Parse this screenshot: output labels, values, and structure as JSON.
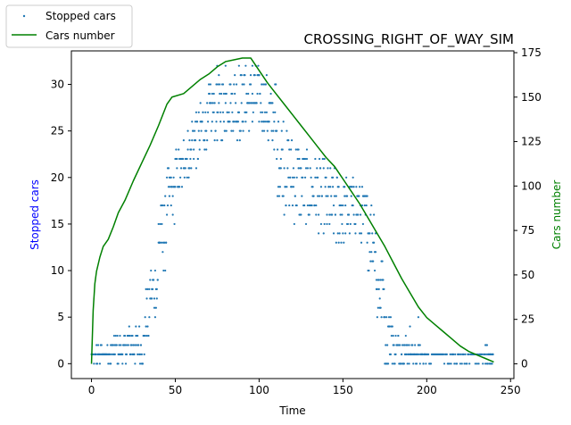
{
  "chart_data": {
    "type": "scatter",
    "title": "CROSSING_RIGHT_OF_WAY_SIM",
    "xlabel": "Time",
    "ylabel": "Stopped cars",
    "ylabel_right": "Cars number",
    "xlim": [
      -12,
      252
    ],
    "ylim": [
      -1.6,
      33.6
    ],
    "ylim_right": [
      -8.3,
      176
    ],
    "x_ticks": [
      0,
      50,
      100,
      150,
      200,
      250
    ],
    "y_ticks": [
      0,
      5,
      10,
      15,
      20,
      25,
      30
    ],
    "y_ticks_right": [
      0,
      25,
      50,
      75,
      100,
      125,
      150,
      175
    ],
    "grid": false,
    "legend_position": "outside-top-left",
    "colors": {
      "stopped": "#1f77b4",
      "cars": "#008000",
      "left_label": "#0000ff",
      "right_label": "#008000"
    },
    "series": [
      {
        "name": "Stopped cars",
        "kind": "scatter",
        "axis": "left",
        "bands": [
          [
            0,
            2,
            0,
            1
          ],
          [
            2,
            5,
            0,
            2
          ],
          [
            5,
            12,
            0,
            2
          ],
          [
            12,
            20,
            0,
            3
          ],
          [
            20,
            28,
            0,
            4
          ],
          [
            28,
            32,
            0,
            4
          ],
          [
            32,
            35,
            2,
            8
          ],
          [
            35,
            40,
            5,
            11
          ],
          [
            40,
            45,
            10,
            18
          ],
          [
            45,
            50,
            15,
            21
          ],
          [
            50,
            55,
            18,
            23
          ],
          [
            55,
            60,
            20,
            25
          ],
          [
            60,
            65,
            21,
            27
          ],
          [
            65,
            70,
            23,
            28
          ],
          [
            70,
            75,
            24,
            30
          ],
          [
            75,
            80,
            24,
            31
          ],
          [
            80,
            85,
            25,
            31
          ],
          [
            85,
            90,
            24,
            32
          ],
          [
            90,
            95,
            25,
            31
          ],
          [
            95,
            100,
            25,
            32
          ],
          [
            100,
            105,
            25,
            31
          ],
          [
            105,
            110,
            23,
            30
          ],
          [
            110,
            115,
            18,
            27
          ],
          [
            115,
            120,
            16,
            25
          ],
          [
            120,
            125,
            15,
            24
          ],
          [
            125,
            130,
            15,
            23
          ],
          [
            130,
            135,
            15,
            22
          ],
          [
            135,
            140,
            14,
            22
          ],
          [
            140,
            145,
            13,
            21
          ],
          [
            145,
            150,
            12,
            21
          ],
          [
            150,
            155,
            13,
            20
          ],
          [
            155,
            160,
            14,
            20
          ],
          [
            160,
            165,
            13,
            19
          ],
          [
            165,
            170,
            10,
            18
          ],
          [
            170,
            175,
            4,
            12
          ],
          [
            175,
            180,
            0,
            6
          ],
          [
            180,
            190,
            0,
            3
          ],
          [
            190,
            200,
            0,
            2
          ],
          [
            200,
            220,
            0,
            1
          ],
          [
            220,
            235,
            0,
            1
          ],
          [
            235,
            240,
            0,
            2
          ]
        ],
        "points": [
          {
            "x": 75,
            "y": 32
          },
          {
            "x": 80,
            "y": 32
          },
          {
            "x": 88,
            "y": 32
          },
          {
            "x": 92,
            "y": 32
          },
          {
            "x": 96,
            "y": 32
          },
          {
            "x": 100,
            "y": 31
          },
          {
            "x": 110,
            "y": 30
          },
          {
            "x": 183,
            "y": 3
          },
          {
            "x": 190,
            "y": 4
          },
          {
            "x": 195,
            "y": 5
          },
          {
            "x": 238,
            "y": 1
          }
        ]
      },
      {
        "name": "Cars number",
        "kind": "line",
        "axis": "right",
        "points": [
          [
            0,
            0
          ],
          [
            1,
            30
          ],
          [
            2,
            45
          ],
          [
            3,
            52
          ],
          [
            5,
            60
          ],
          [
            7,
            66
          ],
          [
            10,
            70
          ],
          [
            13,
            77
          ],
          [
            16,
            85
          ],
          [
            20,
            92
          ],
          [
            25,
            103
          ],
          [
            30,
            113
          ],
          [
            35,
            123
          ],
          [
            40,
            134
          ],
          [
            45,
            146
          ],
          [
            48,
            150
          ],
          [
            55,
            152
          ],
          [
            60,
            156
          ],
          [
            65,
            160
          ],
          [
            70,
            163
          ],
          [
            75,
            167
          ],
          [
            80,
            170
          ],
          [
            85,
            171
          ],
          [
            90,
            172
          ],
          [
            95,
            172
          ],
          [
            100,
            165
          ],
          [
            105,
            158
          ],
          [
            110,
            152
          ],
          [
            115,
            146
          ],
          [
            120,
            140
          ],
          [
            125,
            134
          ],
          [
            130,
            128
          ],
          [
            135,
            122
          ],
          [
            140,
            116
          ],
          [
            145,
            111
          ],
          [
            150,
            104
          ],
          [
            155,
            97
          ],
          [
            160,
            90
          ],
          [
            165,
            82
          ],
          [
            170,
            74
          ],
          [
            175,
            66
          ],
          [
            180,
            57
          ],
          [
            185,
            48
          ],
          [
            190,
            40
          ],
          [
            195,
            32
          ],
          [
            200,
            26
          ],
          [
            205,
            22
          ],
          [
            210,
            18
          ],
          [
            215,
            14
          ],
          [
            220,
            10
          ],
          [
            225,
            7
          ],
          [
            230,
            5
          ],
          [
            235,
            3
          ],
          [
            240,
            1
          ]
        ]
      }
    ]
  }
}
